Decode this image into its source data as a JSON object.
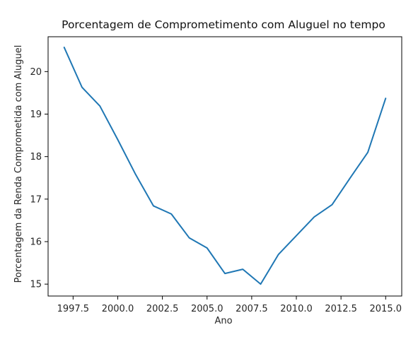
{
  "chart_data": {
    "type": "line",
    "title": "Porcentagem de Comprometimento com Aluguel no tempo",
    "xlabel": "Ano",
    "ylabel": "Porcentagem da Renda Comprometida com Aluguel",
    "xlim": [
      1996.1,
      2015.9
    ],
    "ylim": [
      14.72,
      20.82
    ],
    "grid": false,
    "x_ticks": [
      "1997.5",
      "2000.0",
      "2002.5",
      "2005.0",
      "2007.5",
      "2010.0",
      "2012.5",
      "2015.0"
    ],
    "y_ticks": [
      "15",
      "16",
      "17",
      "18",
      "19",
      "20"
    ],
    "series": [
      {
        "color": "#1f77b4",
        "x": [
          1997,
          1998,
          1999,
          2000,
          2001,
          2002,
          2003,
          2004,
          2005,
          2006,
          2007,
          2008,
          2009,
          2010,
          2011,
          2012,
          2013,
          2014,
          2015
        ],
        "y": [
          20.57,
          19.63,
          19.19,
          18.4,
          17.58,
          16.84,
          16.65,
          16.09,
          15.85,
          15.25,
          15.35,
          15.0,
          15.7,
          16.14,
          16.58,
          16.87,
          17.49,
          18.1,
          19.37
        ]
      }
    ]
  }
}
